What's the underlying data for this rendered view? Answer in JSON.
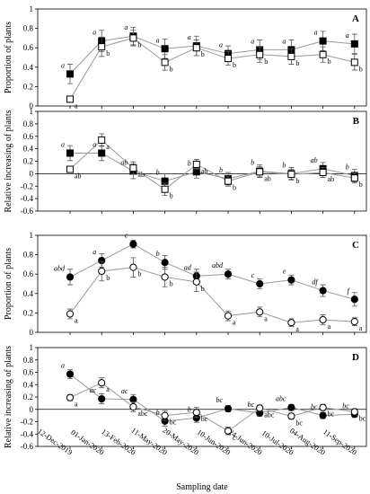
{
  "chart_data": [
    {
      "type": "line",
      "panel_label": "A",
      "ylabel": "Proportion of plants",
      "ylim": [
        0,
        1
      ],
      "yticks": [
        0,
        0.2,
        0.4,
        0.6,
        0.8,
        1
      ],
      "line_color": "#9a9a9a",
      "series": [
        {
          "marker": "square",
          "filled": true,
          "color": "#000000",
          "values": [
            0.33,
            0.67,
            0.72,
            0.59,
            0.62,
            0.54,
            0.58,
            0.58,
            0.67,
            0.64
          ],
          "errors": [
            0.1,
            0.11,
            0.09,
            0.1,
            0.1,
            0.08,
            0.1,
            0.1,
            0.1,
            0.1
          ],
          "letters": [
            "a",
            "a",
            "a",
            "a",
            "a",
            "a",
            "a",
            "a",
            "a",
            "a"
          ]
        },
        {
          "marker": "square",
          "filled": false,
          "color": "#000000",
          "values": [
            0.07,
            0.61,
            0.7,
            0.45,
            0.6,
            0.49,
            0.53,
            0.51,
            0.53,
            0.45
          ],
          "errors": [
            0.03,
            0.1,
            0.08,
            0.08,
            0.08,
            0.07,
            0.08,
            0.08,
            0.08,
            0.08
          ],
          "letters": [
            "a",
            "b",
            "b",
            "b",
            "b",
            "b",
            "b",
            "b",
            "b",
            "b"
          ]
        }
      ]
    },
    {
      "type": "line",
      "panel_label": "B",
      "ylabel": "Relative increasing of plants",
      "ylim": [
        -0.6,
        1
      ],
      "yticks": [
        -0.6,
        -0.4,
        -0.2,
        0,
        0.2,
        0.4,
        0.6,
        0.8,
        1
      ],
      "line_color": "#9a9a9a",
      "series": [
        {
          "marker": "square",
          "filled": true,
          "color": "#000000",
          "values": [
            0.33,
            0.33,
            0.04,
            -0.12,
            0.03,
            -0.08,
            0.04,
            0.0,
            0.08,
            -0.03
          ],
          "errors": [
            0.12,
            0.12,
            0.12,
            0.12,
            0.1,
            0.1,
            0.1,
            0.1,
            0.1,
            0.1
          ],
          "letters": [
            "a",
            "a",
            "ab",
            "b",
            "b",
            "b",
            "b",
            "b",
            "ab",
            "b"
          ]
        },
        {
          "marker": "square",
          "filled": false,
          "color": "#000000",
          "values": [
            0.07,
            0.54,
            0.09,
            -0.25,
            0.15,
            -0.12,
            0.03,
            -0.01,
            0.02,
            -0.07
          ],
          "errors": [
            0.03,
            0.1,
            0.1,
            0.1,
            0.08,
            0.08,
            0.08,
            0.08,
            0.08,
            0.08
          ],
          "letters": [
            "ab",
            "a",
            "ab",
            "b",
            "ab",
            "b",
            "ab",
            "b",
            "ab",
            "b"
          ]
        }
      ]
    },
    {
      "type": "line",
      "panel_label": "C",
      "ylabel": "Proportion of plants",
      "ylim": [
        0,
        1
      ],
      "yticks": [
        0,
        0.2,
        0.4,
        0.6,
        0.8,
        1
      ],
      "line_color": "#9a9a9a",
      "series": [
        {
          "marker": "circle",
          "filled": true,
          "color": "#000000",
          "values": [
            0.57,
            0.74,
            0.91,
            0.72,
            0.58,
            0.6,
            0.5,
            0.54,
            0.43,
            0.34
          ],
          "errors": [
            0.08,
            0.07,
            0.04,
            0.07,
            0.07,
            0.05,
            0.05,
            0.05,
            0.06,
            0.07
          ],
          "letters": [
            "abd",
            "a",
            "c",
            "b",
            "ad",
            "abd",
            "c",
            "e",
            "df",
            "f"
          ]
        },
        {
          "marker": "circle",
          "filled": false,
          "color": "#000000",
          "values": [
            0.19,
            0.63,
            0.67,
            0.57,
            0.52,
            0.17,
            0.21,
            0.1,
            0.13,
            0.11
          ],
          "errors": [
            0.05,
            0.1,
            0.1,
            0.1,
            0.1,
            0.05,
            0.05,
            0.04,
            0.05,
            0.04
          ],
          "letters": [
            "a",
            "b",
            "b",
            "b",
            "b",
            "a",
            "a",
            "a",
            "a",
            "a"
          ]
        }
      ]
    },
    {
      "type": "line",
      "panel_label": "D",
      "ylabel": "Relative increasing of plants",
      "xlabel": "Sampling date",
      "categories": [
        "12-Dec-2019",
        "01-Jan-2020",
        "13-Feb-2020",
        "11-May-2020",
        "20-May-2020",
        "10-Jun-2020",
        "24-Jun-2020",
        "10-Jul-2020",
        "04-Aug-2020",
        "11-Sep-2020"
      ],
      "ylim": [
        -0.6,
        1
      ],
      "yticks": [
        -0.6,
        -0.4,
        -0.2,
        0,
        0.2,
        0.4,
        0.6,
        0.8,
        1
      ],
      "line_color": "#9a9a9a",
      "series": [
        {
          "marker": "circle",
          "filled": true,
          "color": "#000000",
          "values": [
            0.57,
            0.17,
            0.16,
            -0.19,
            -0.14,
            0.01,
            -0.06,
            0.03,
            -0.1,
            -0.08
          ],
          "errors": [
            0.07,
            0.08,
            0.08,
            0.08,
            0.07,
            0.05,
            0.05,
            0.05,
            0.05,
            0.05
          ],
          "letters": [
            "a",
            "ac",
            "ac",
            "b",
            "b",
            "bc",
            "bc",
            "abc",
            "bc",
            "bc"
          ]
        },
        {
          "marker": "circle",
          "filled": false,
          "color": "#000000",
          "values": [
            0.19,
            0.43,
            0.04,
            -0.1,
            -0.05,
            -0.35,
            0.02,
            -0.11,
            0.03,
            -0.04
          ],
          "errors": [
            0.05,
            0.08,
            0.08,
            0.08,
            0.08,
            0.06,
            0.05,
            0.05,
            0.05,
            0.05
          ],
          "letters": [
            "a",
            "a",
            "abc",
            "bc",
            "bc",
            "c",
            "abc",
            "bc",
            "bc",
            "bc"
          ]
        }
      ]
    }
  ]
}
